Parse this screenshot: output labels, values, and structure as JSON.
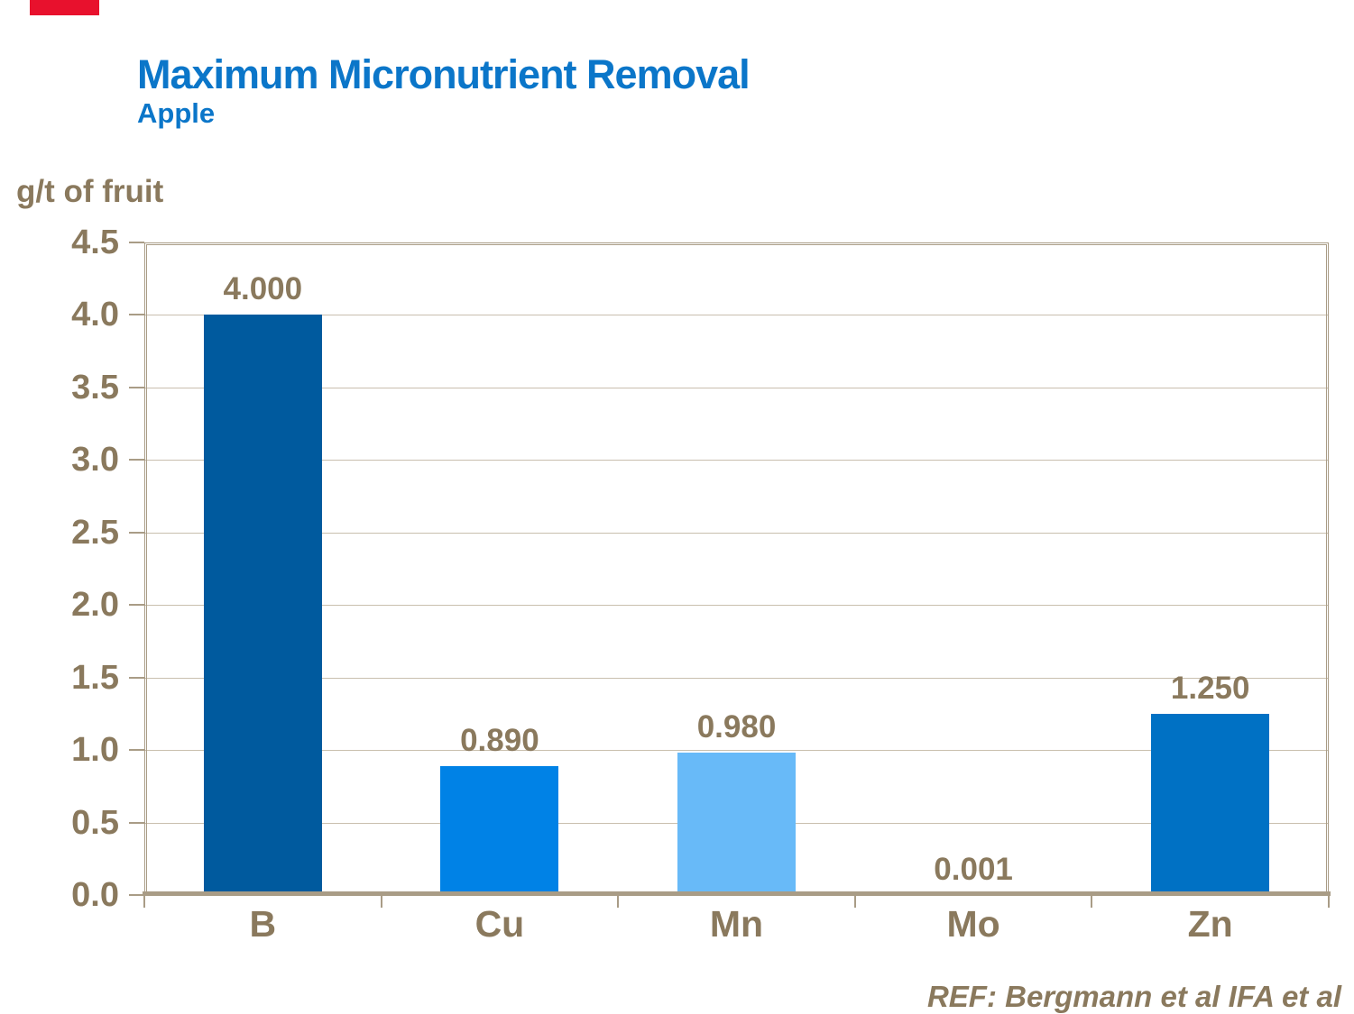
{
  "accent": {
    "bar_color": "#E8112D"
  },
  "header": {
    "title": "Maximum Micronutrient Removal",
    "subtitle": "Apple",
    "title_color": "#0B76C9"
  },
  "chart_data": {
    "type": "bar",
    "title": "Maximum Micronutrient Removal",
    "subtitle": "Apple",
    "ylabel": "g/t of fruit",
    "xlabel": "",
    "categories": [
      "B",
      "Cu",
      "Mn",
      "Mo",
      "Zn"
    ],
    "values": [
      4.0,
      0.89,
      0.98,
      0.001,
      1.25
    ],
    "value_labels": [
      "4.000",
      "0.890",
      "0.980",
      "0.001",
      "1.250"
    ],
    "bar_colors": [
      "#005A9E",
      "#0082E6",
      "#68BAF8",
      "#0082E6",
      "#0071C4"
    ],
    "ylim": [
      0,
      4.5
    ],
    "ytick_step": 0.5,
    "ytick_labels": [
      "0.0",
      "0.5",
      "1.0",
      "1.5",
      "2.0",
      "2.5",
      "3.0",
      "3.5",
      "4.0",
      "4.5"
    ],
    "grid": true,
    "legend": "none",
    "text_color": "#8A795D",
    "grid_color": "#C9BFAE",
    "axis_color": "#A99C86"
  },
  "footer": {
    "ref": "REF: Bergmann et al IFA et al"
  }
}
